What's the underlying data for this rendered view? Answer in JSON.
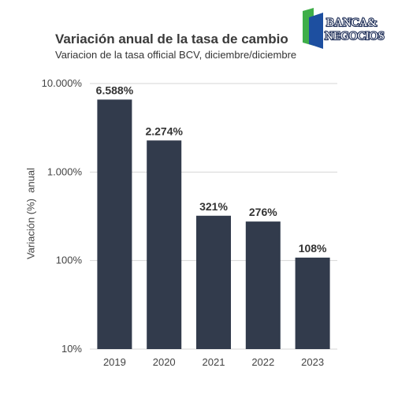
{
  "logo": {
    "line1": "BANCA&",
    "line2": "NEGOCIOS"
  },
  "chart_data": {
    "type": "bar",
    "title": "Variación anual de la tasa de cambio",
    "subtitle": "Variacion de la tasa official BCV, diciembre/diciembre",
    "xlabel": "",
    "ylabel": "Variación (%)  anual",
    "yscale": "log",
    "ylim": [
      10,
      10000
    ],
    "yticks": [
      10,
      100,
      1000,
      10000
    ],
    "ytick_labels": [
      "10%",
      "100%",
      "1.000%",
      "10.000%"
    ],
    "categories": [
      "2019",
      "2020",
      "2021",
      "2022",
      "2023"
    ],
    "values": [
      6588,
      2274,
      321,
      276,
      108
    ],
    "value_labels": [
      "6.588%",
      "2.274%",
      "321%",
      "276%",
      "108%"
    ],
    "bar_color": "#323b4c",
    "grid": true
  }
}
